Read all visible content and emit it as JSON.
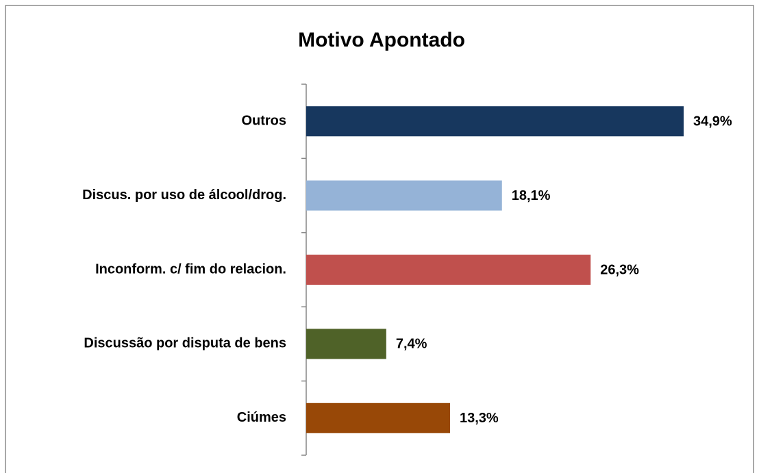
{
  "chart_data": {
    "type": "bar",
    "orientation": "horizontal",
    "title": "Motivo Apontado",
    "categories": [
      "Outros",
      "Discus. por uso de álcool/drog.",
      "Inconform. c/ fim do relacion.",
      "Discussão por disputa de bens",
      "Ciúmes"
    ],
    "values": [
      34.9,
      18.1,
      26.3,
      7.4,
      13.3
    ],
    "value_labels": [
      "34,9%",
      "18,1%",
      "26,3%",
      "7,4%",
      "13,3%"
    ],
    "colors": [
      "#17375e",
      "#95b3d7",
      "#c0504d",
      "#4f6228",
      "#984807"
    ]
  }
}
